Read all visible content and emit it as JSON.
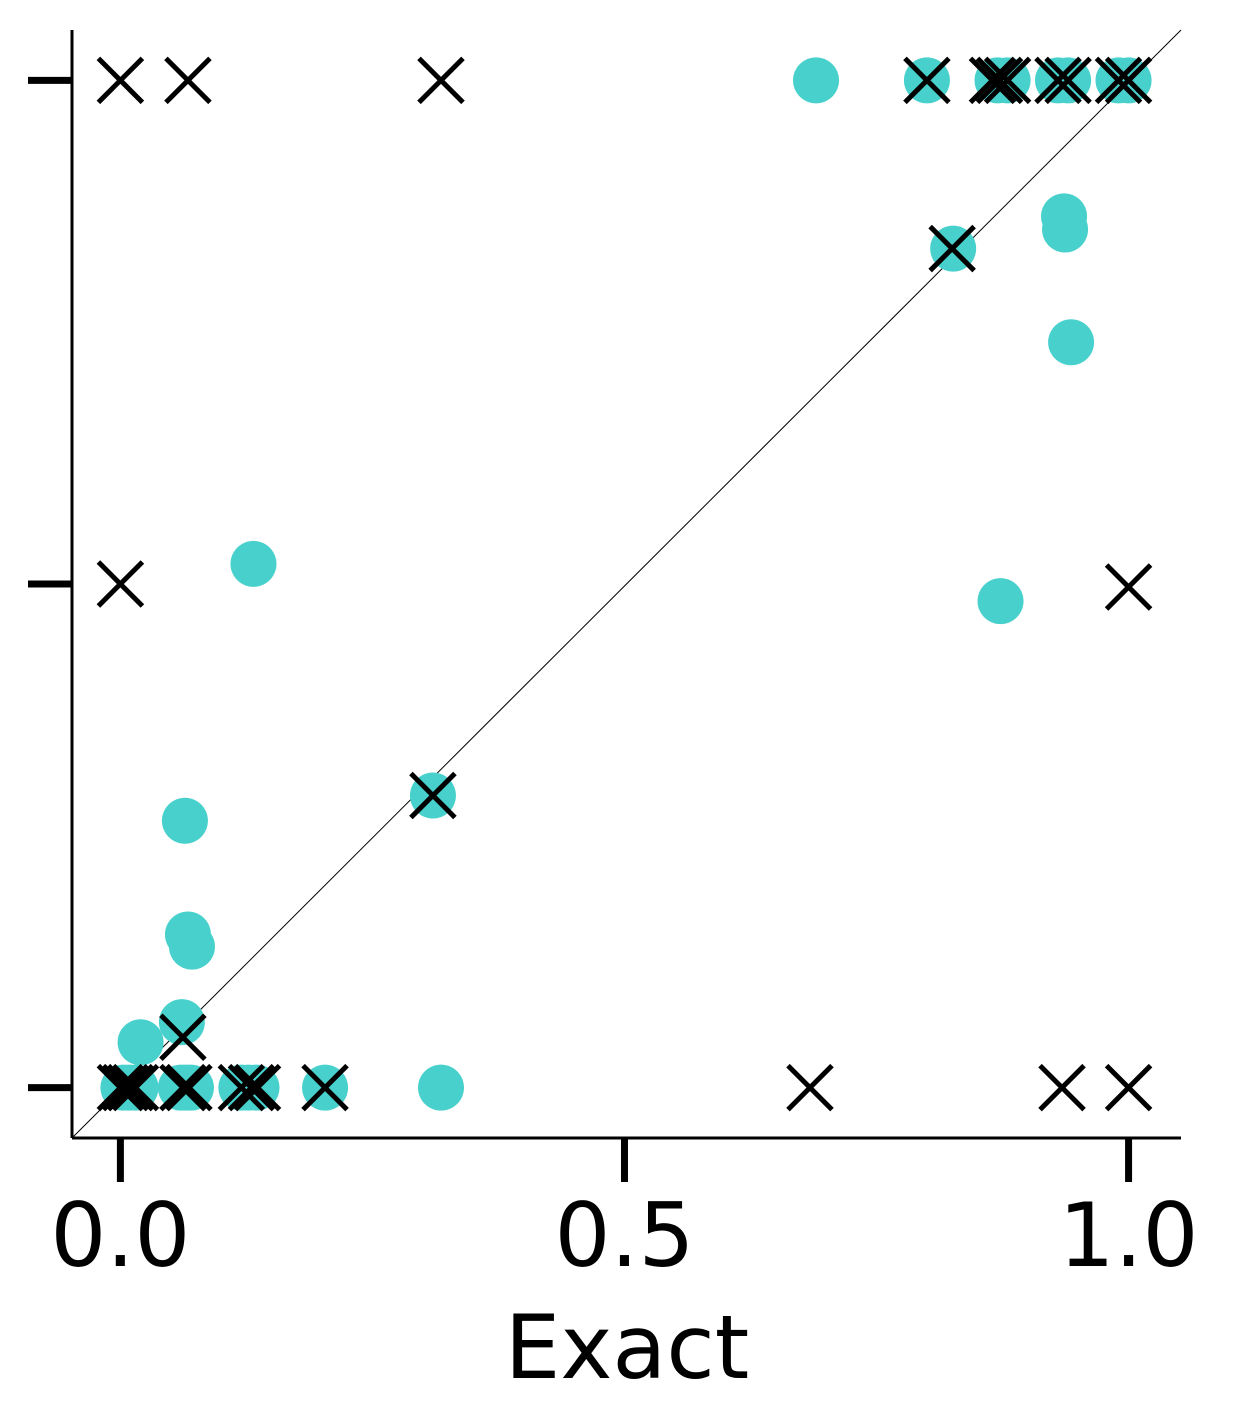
{
  "chart_data": {
    "type": "scatter",
    "title": "",
    "xlabel": "Exact",
    "ylabel": "",
    "xlim": [
      -0.048,
      1.052
    ],
    "ylim": [
      -0.05,
      1.05
    ],
    "x_ticks": [
      0.0,
      0.5,
      1.0
    ],
    "x_tick_labels": [
      "0.0",
      "0.5",
      "1.0"
    ],
    "y_ticks": [
      0.0,
      0.5,
      1.0
    ],
    "y_tick_labels": [
      "",
      "",
      ""
    ],
    "grid": false,
    "legend": null,
    "reference_line": {
      "kind": "diagonal",
      "x": [
        -0.048,
        1.052
      ],
      "y": [
        -0.05,
        1.05
      ],
      "color": "#000000"
    },
    "series": [
      {
        "name": "circles",
        "marker": "circle",
        "color": "#48D1CC",
        "points": [
          [
            0.69,
            1.0
          ],
          [
            0.8,
            1.0
          ],
          [
            0.87,
            1.0
          ],
          [
            0.88,
            1.0
          ],
          [
            0.93,
            1.0
          ],
          [
            0.94,
            1.0
          ],
          [
            0.99,
            1.0
          ],
          [
            1.0,
            1.0
          ],
          [
            0.936,
            0.865
          ],
          [
            0.937,
            0.852
          ],
          [
            0.943,
            0.74
          ],
          [
            0.826,
            0.833
          ],
          [
            0.132,
            0.52
          ],
          [
            0.873,
            0.483
          ],
          [
            0.31,
            0.29
          ],
          [
            0.064,
            0.265
          ],
          [
            0.067,
            0.152
          ],
          [
            0.071,
            0.14
          ],
          [
            0.061,
            0.065
          ],
          [
            0.02,
            0.045
          ],
          [
            0.003,
            0.0
          ],
          [
            0.009,
            0.0
          ],
          [
            0.015,
            0.0
          ],
          [
            0.06,
            0.0
          ],
          [
            0.065,
            0.0
          ],
          [
            0.07,
            0.0
          ],
          [
            0.12,
            0.0
          ],
          [
            0.127,
            0.0
          ],
          [
            0.135,
            0.0
          ],
          [
            0.203,
            0.0
          ],
          [
            0.318,
            0.0
          ]
        ]
      },
      {
        "name": "crosses",
        "marker": "x",
        "color": "#000000",
        "points": [
          [
            0.0,
            1.0
          ],
          [
            0.067,
            1.0
          ],
          [
            0.318,
            1.0
          ],
          [
            0.8,
            1.0
          ],
          [
            0.865,
            1.0
          ],
          [
            0.872,
            1.0
          ],
          [
            0.88,
            1.0
          ],
          [
            0.93,
            1.0
          ],
          [
            0.94,
            1.0
          ],
          [
            0.99,
            1.0
          ],
          [
            1.0,
            1.0
          ],
          [
            0.825,
            0.833
          ],
          [
            0.0,
            0.5
          ],
          [
            1.0,
            0.497
          ],
          [
            0.31,
            0.29
          ],
          [
            0.062,
            0.05
          ],
          [
            0.0,
            0.0
          ],
          [
            0.005,
            0.0
          ],
          [
            0.01,
            0.0
          ],
          [
            0.015,
            0.0
          ],
          [
            0.062,
            0.0
          ],
          [
            0.068,
            0.0
          ],
          [
            0.12,
            0.0
          ],
          [
            0.13,
            0.0
          ],
          [
            0.136,
            0.0
          ],
          [
            0.203,
            0.0
          ],
          [
            0.684,
            0.0
          ],
          [
            0.934,
            0.0
          ],
          [
            1.0,
            0.0
          ]
        ]
      }
    ]
  }
}
